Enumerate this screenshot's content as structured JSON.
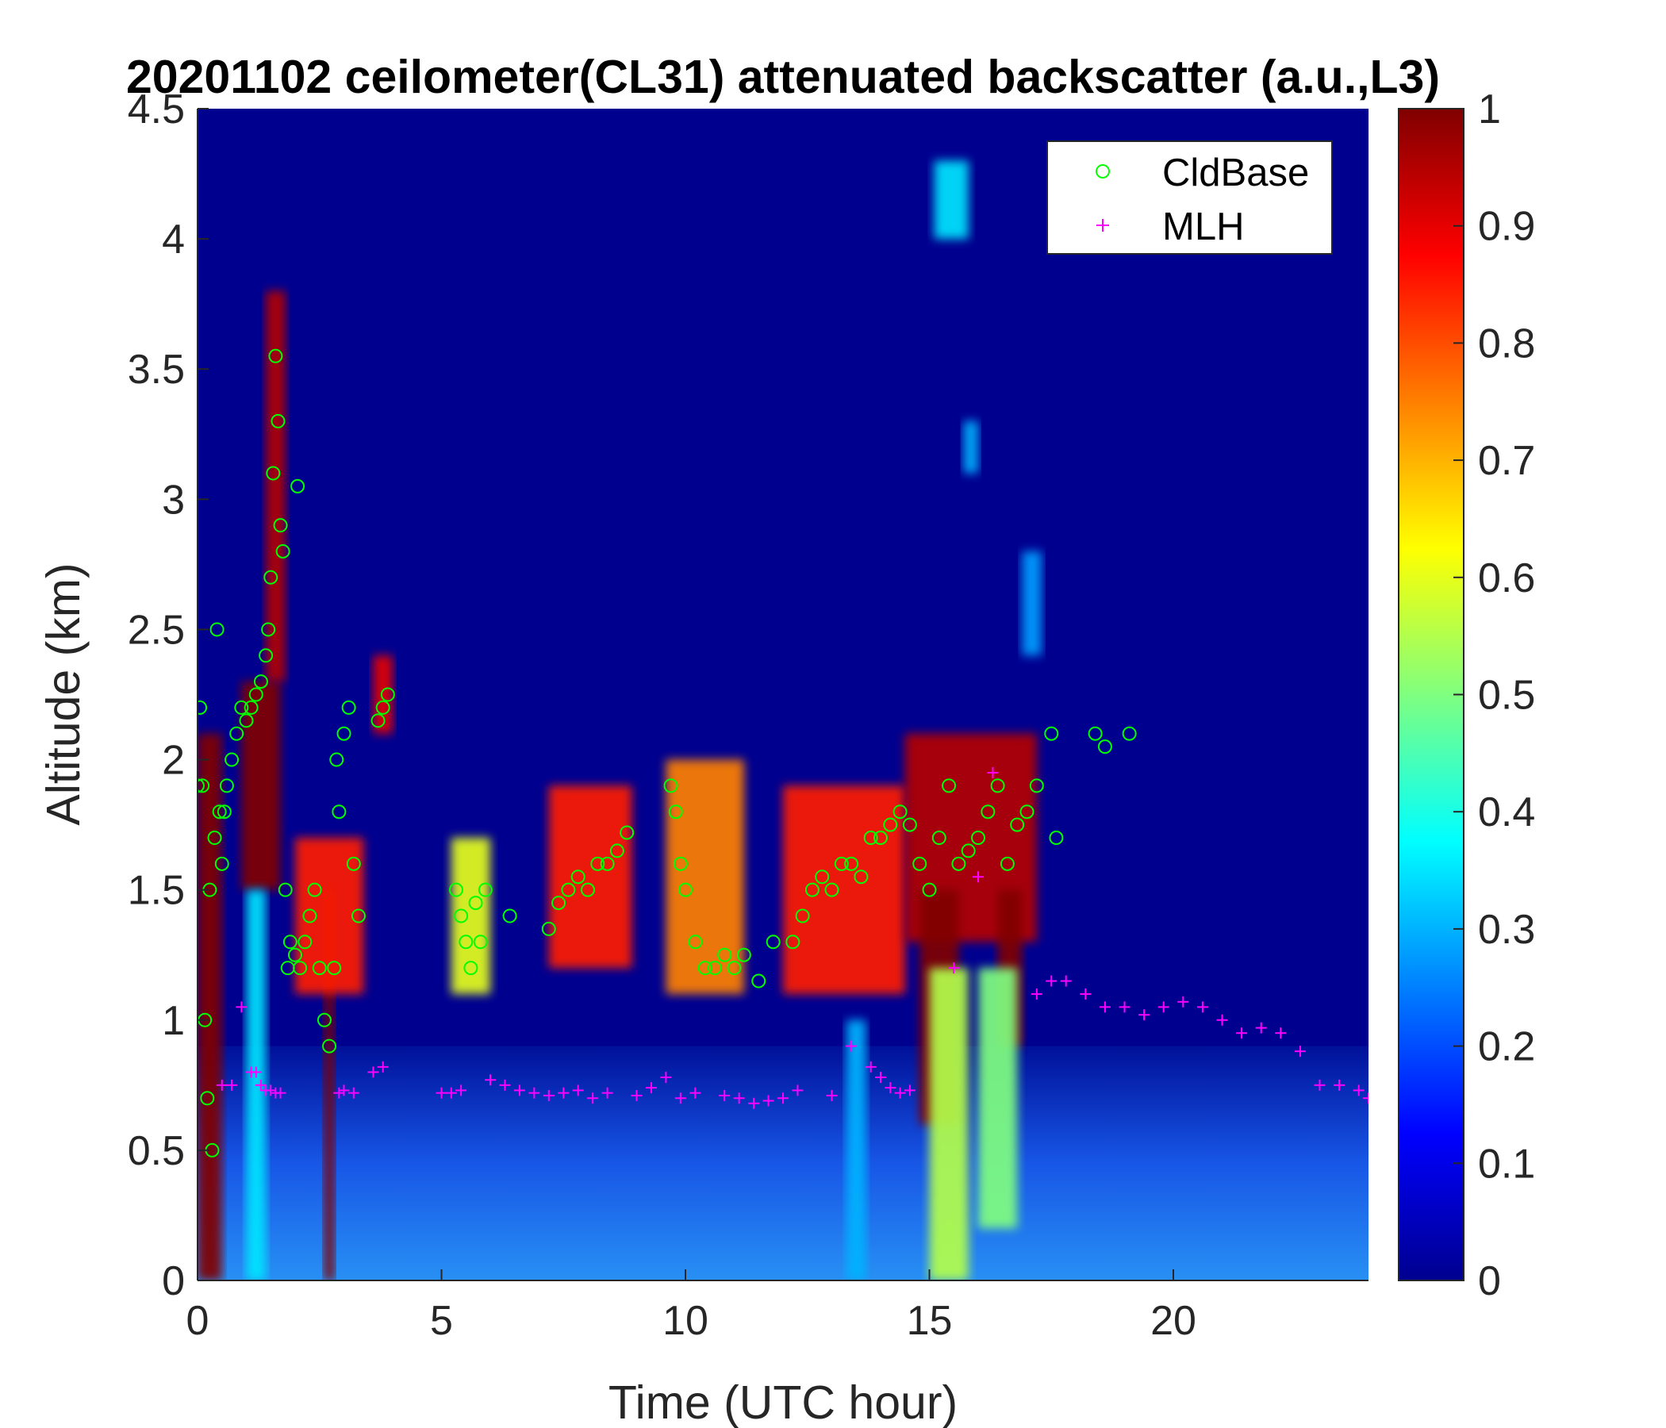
{
  "chart_data": {
    "type": "heatmap",
    "title": "20201102 ceilometer(CL31) attenuated backscatter (a.u.,L3)",
    "xlabel": "Time (UTC hour)",
    "ylabel": "Altitude (km)",
    "xlim": [
      0,
      24
    ],
    "ylim": [
      0,
      4.5
    ],
    "xticks": [
      0,
      5,
      10,
      15,
      20
    ],
    "xtick_labels": [
      "0",
      "5",
      "10",
      "15",
      "20"
    ],
    "yticks": [
      0,
      0.5,
      1,
      1.5,
      2,
      2.5,
      3,
      3.5,
      4,
      4.5
    ],
    "ytick_labels": [
      "0",
      "0.5",
      "1",
      "1.5",
      "2",
      "2.5",
      "3",
      "3.5",
      "4",
      "4.5"
    ],
    "colorbar": {
      "colormap": "jet",
      "clim": [
        0,
        1
      ],
      "ticks": [
        0,
        0.1,
        0.2,
        0.3,
        0.4,
        0.5,
        0.6,
        0.7,
        0.8,
        0.9,
        1
      ],
      "tick_labels": [
        "0",
        "0.1",
        "0.2",
        "0.3",
        "0.4",
        "0.5",
        "0.6",
        "0.7",
        "0.8",
        "0.9",
        "1"
      ]
    },
    "background_value": 0.04,
    "near_surface_layer": {
      "top_km": 0.9,
      "value_surface": 0.3,
      "value_top": 0.12
    },
    "bright_regions": [
      {
        "t0": 0.0,
        "t1": 0.5,
        "z0": 0.0,
        "z1": 2.1,
        "value": 1.0
      },
      {
        "t0": 0.9,
        "t1": 1.7,
        "z0": 1.5,
        "z1": 2.3,
        "value": 1.0
      },
      {
        "t0": 1.4,
        "t1": 1.8,
        "z0": 2.3,
        "z1": 3.8,
        "value": 0.95
      },
      {
        "t0": 2.6,
        "t1": 2.8,
        "z0": 0.0,
        "z1": 1.5,
        "value": 1.0
      },
      {
        "t0": 1.0,
        "t1": 1.4,
        "z0": 0.0,
        "z1": 1.5,
        "value": 0.35
      },
      {
        "t0": 2.0,
        "t1": 3.4,
        "z0": 1.1,
        "z1": 1.7,
        "value": 0.85
      },
      {
        "t0": 3.6,
        "t1": 4.0,
        "z0": 2.1,
        "z1": 2.4,
        "value": 0.9
      },
      {
        "t0": 5.2,
        "t1": 6.0,
        "z0": 1.1,
        "z1": 1.7,
        "value": 0.6
      },
      {
        "t0": 7.2,
        "t1": 8.9,
        "z0": 1.2,
        "z1": 1.9,
        "value": 0.85
      },
      {
        "t0": 9.6,
        "t1": 11.2,
        "z0": 1.1,
        "z1": 2.0,
        "value": 0.75
      },
      {
        "t0": 12.0,
        "t1": 14.5,
        "z0": 1.1,
        "z1": 1.9,
        "value": 0.85
      },
      {
        "t0": 14.5,
        "t1": 17.2,
        "z0": 1.3,
        "z1": 2.1,
        "value": 0.95
      },
      {
        "t0": 14.8,
        "t1": 15.6,
        "z0": 0.6,
        "z1": 1.5,
        "value": 1.0
      },
      {
        "t0": 16.4,
        "t1": 16.9,
        "z0": 0.9,
        "z1": 1.5,
        "value": 1.0
      },
      {
        "t0": 15.0,
        "t1": 15.8,
        "z0": 0.0,
        "z1": 1.2,
        "value": 0.55
      },
      {
        "t0": 16.0,
        "t1": 16.8,
        "z0": 0.2,
        "z1": 1.2,
        "value": 0.5
      },
      {
        "t0": 13.3,
        "t1": 13.7,
        "z0": 0.0,
        "z1": 1.0,
        "value": 0.3
      },
      {
        "t0": 15.1,
        "t1": 15.8,
        "z0": 4.0,
        "z1": 4.3,
        "value": 0.35
      },
      {
        "t0": 15.7,
        "t1": 16.0,
        "z0": 3.1,
        "z1": 3.3,
        "value": 0.3
      },
      {
        "t0": 16.9,
        "t1": 17.3,
        "z0": 2.4,
        "z1": 2.8,
        "value": 0.28
      }
    ],
    "series": [
      {
        "name": "CldBase",
        "marker": "circle",
        "color": "#00ff00",
        "x": [
          0.0,
          0.05,
          0.1,
          0.15,
          0.2,
          0.25,
          0.3,
          0.35,
          0.4,
          0.45,
          0.5,
          0.55,
          0.6,
          0.7,
          0.8,
          0.9,
          1.0,
          1.1,
          1.2,
          1.3,
          1.4,
          1.45,
          1.5,
          1.55,
          1.6,
          1.65,
          1.7,
          1.75,
          1.8,
          1.85,
          1.9,
          2.0,
          2.05,
          2.1,
          2.2,
          2.3,
          2.4,
          2.5,
          2.6,
          2.7,
          2.8,
          2.85,
          2.9,
          3.0,
          3.1,
          3.2,
          3.3,
          3.7,
          3.8,
          3.9,
          5.3,
          5.4,
          5.5,
          5.6,
          5.7,
          5.8,
          5.9,
          6.4,
          7.2,
          7.4,
          7.6,
          7.8,
          8.0,
          8.2,
          8.4,
          8.6,
          8.8,
          9.7,
          9.8,
          9.9,
          10.0,
          10.2,
          10.4,
          10.6,
          10.8,
          11.0,
          11.2,
          11.5,
          11.8,
          12.2,
          12.4,
          12.6,
          12.8,
          13.0,
          13.2,
          13.4,
          13.6,
          13.8,
          14.0,
          14.2,
          14.4,
          14.6,
          14.8,
          15.0,
          15.2,
          15.4,
          15.6,
          15.8,
          16.0,
          16.2,
          16.4,
          16.6,
          16.8,
          17.0,
          17.2,
          17.5,
          17.6,
          18.4,
          18.6,
          19.1
        ],
        "y": [
          1.9,
          2.2,
          1.9,
          1.0,
          0.7,
          1.5,
          0.5,
          1.7,
          2.5,
          1.8,
          1.6,
          1.8,
          1.9,
          2.0,
          2.1,
          2.2,
          2.15,
          2.2,
          2.25,
          2.3,
          2.4,
          2.5,
          2.7,
          3.1,
          3.55,
          3.3,
          2.9,
          2.8,
          1.5,
          1.2,
          1.3,
          1.25,
          3.05,
          1.2,
          1.3,
          1.4,
          1.5,
          1.2,
          1.0,
          0.9,
          1.2,
          2.0,
          1.8,
          2.1,
          2.2,
          1.6,
          1.4,
          2.15,
          2.2,
          2.25,
          1.5,
          1.4,
          1.3,
          1.2,
          1.45,
          1.3,
          1.5,
          1.4,
          1.35,
          1.45,
          1.5,
          1.55,
          1.5,
          1.6,
          1.6,
          1.65,
          1.72,
          1.9,
          1.8,
          1.6,
          1.5,
          1.3,
          1.2,
          1.2,
          1.25,
          1.2,
          1.25,
          1.15,
          1.3,
          1.3,
          1.4,
          1.5,
          1.55,
          1.5,
          1.6,
          1.6,
          1.55,
          1.7,
          1.7,
          1.75,
          1.8,
          1.75,
          1.6,
          1.5,
          1.7,
          1.9,
          1.6,
          1.65,
          1.7,
          1.8,
          1.9,
          1.6,
          1.75,
          1.8,
          1.9,
          2.1,
          1.7,
          2.1,
          2.05,
          2.1
        ]
      },
      {
        "name": "MLH",
        "marker": "plus",
        "color": "#ff00ff",
        "x": [
          0.5,
          0.7,
          0.9,
          1.1,
          1.2,
          1.3,
          1.4,
          1.5,
          1.6,
          1.7,
          2.9,
          3.0,
          3.2,
          3.6,
          3.8,
          5.0,
          5.2,
          5.4,
          6.0,
          6.3,
          6.6,
          6.9,
          7.2,
          7.5,
          7.8,
          8.1,
          8.4,
          9.0,
          9.3,
          9.6,
          9.9,
          10.2,
          10.8,
          11.1,
          11.4,
          11.7,
          12.0,
          12.3,
          13.0,
          13.4,
          13.8,
          14.0,
          14.2,
          14.4,
          14.6,
          15.5,
          16.0,
          16.3,
          17.2,
          17.5,
          17.8,
          18.2,
          18.6,
          19.0,
          19.4,
          19.8,
          20.2,
          20.6,
          21.0,
          21.4,
          21.8,
          22.2,
          22.6,
          23.0,
          23.4,
          23.8,
          24.0
        ],
        "y": [
          0.75,
          0.75,
          1.05,
          0.8,
          0.8,
          0.75,
          0.73,
          0.73,
          0.72,
          0.72,
          0.72,
          0.73,
          0.72,
          0.8,
          0.82,
          0.72,
          0.72,
          0.73,
          0.77,
          0.75,
          0.73,
          0.72,
          0.71,
          0.72,
          0.73,
          0.7,
          0.72,
          0.71,
          0.74,
          0.78,
          0.7,
          0.72,
          0.71,
          0.7,
          0.68,
          0.69,
          0.7,
          0.73,
          0.71,
          0.9,
          0.82,
          0.78,
          0.74,
          0.72,
          0.73,
          1.2,
          1.55,
          1.95,
          1.1,
          1.15,
          1.15,
          1.1,
          1.05,
          1.05,
          1.02,
          1.05,
          1.07,
          1.05,
          1.0,
          0.95,
          0.97,
          0.95,
          0.88,
          0.75,
          0.75,
          0.73,
          0.7
        ]
      }
    ],
    "legend": {
      "location": "top-right"
    }
  }
}
